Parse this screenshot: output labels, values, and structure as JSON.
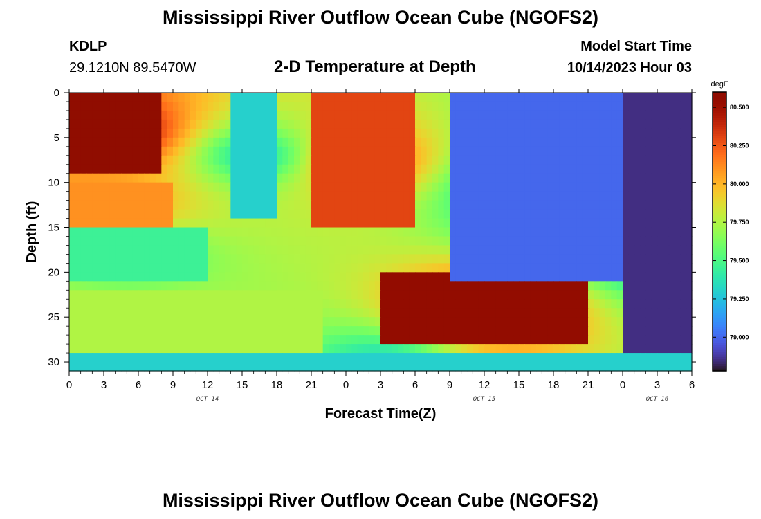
{
  "header": {
    "title": "Mississippi River Outflow Ocean Cube (NGOFS2)",
    "station_id": "KDLP",
    "station_coords": "29.1210N  89.5470W",
    "subtitle": "2-D Temperature at Depth",
    "model_start_label": "Model Start Time",
    "model_start_value": "10/14/2023 Hour 03"
  },
  "footer": {
    "title": "Mississippi River Outflow Ocean Cube (NGOFS2)"
  },
  "chart_data": {
    "type": "heatmap",
    "title": "2-D Temperature at Depth",
    "xlabel": "Forecast Time(Z)",
    "ylabel": "Depth (ft)",
    "x_tick_labels": [
      "0",
      "3",
      "6",
      "9",
      "12",
      "15",
      "18",
      "21",
      "0",
      "3",
      "6",
      "9",
      "12",
      "15",
      "18",
      "21",
      "0",
      "3",
      "6"
    ],
    "x_range_hours": [
      0,
      54
    ],
    "date_labels": [
      {
        "text": "OCT 14",
        "hour": 12
      },
      {
        "text": "OCT 15",
        "hour": 36
      },
      {
        "text": "OCT 16",
        "hour": 51
      }
    ],
    "y_ticks": [
      0,
      5,
      10,
      15,
      20,
      25,
      30
    ],
    "y_range": [
      0,
      31
    ],
    "y_inverted": true,
    "colorbar": {
      "unit": "degF",
      "ticks": [
        80.5,
        80.25,
        80.0,
        79.75,
        79.5,
        79.25,
        79.0
      ],
      "tick_labels": [
        "80.500",
        "80.250",
        "80.000",
        "79.750",
        "79.500",
        "79.250",
        "79.000"
      ],
      "range": [
        78.78,
        80.6
      ],
      "colormap": "turbo"
    },
    "temperature_regions_degF": [
      {
        "hours": [
          0,
          8
        ],
        "depth_ft": [
          0,
          9
        ],
        "value": 80.6
      },
      {
        "hours": [
          0,
          9
        ],
        "depth_ft": [
          10,
          15
        ],
        "value": 80.1
      },
      {
        "hours": [
          0,
          12
        ],
        "depth_ft": [
          15,
          21
        ],
        "value": 79.45
      },
      {
        "hours": [
          0,
          22
        ],
        "depth_ft": [
          22,
          29
        ],
        "value": 79.75
      },
      {
        "hours": [
          14,
          18
        ],
        "depth_ft": [
          0,
          14
        ],
        "value": 79.3
      },
      {
        "hours": [
          21,
          30
        ],
        "depth_ft": [
          0,
          15
        ],
        "value": 80.3
      },
      {
        "hours": [
          27,
          45
        ],
        "depth_ft": [
          20,
          28
        ],
        "value": 80.55
      },
      {
        "hours": [
          33,
          48
        ],
        "depth_ft": [
          0,
          21
        ],
        "value": 79.0
      },
      {
        "hours": [
          48,
          54
        ],
        "depth_ft": [
          0,
          31
        ],
        "value": 78.85
      },
      {
        "hours": [
          0,
          54
        ],
        "depth_ft": [
          29.5,
          31
        ],
        "value": 79.3
      }
    ]
  }
}
